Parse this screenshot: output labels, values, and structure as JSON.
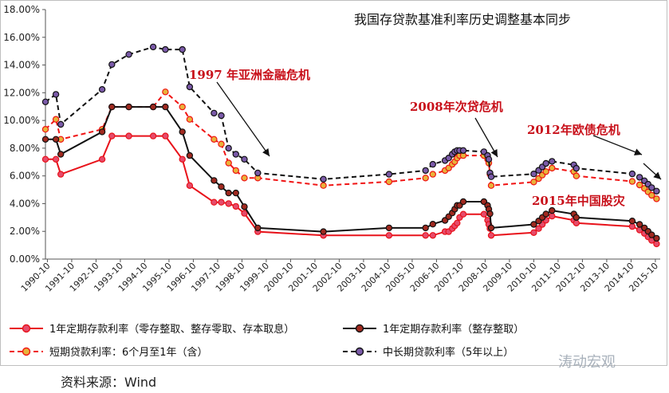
{
  "chart_data": {
    "type": "line",
    "title": "我国存贷款基准利率历史调整基本同步",
    "xlabel": "",
    "ylabel": "",
    "ylim": [
      0,
      18
    ],
    "yticks": [
      "0.00%",
      "2.00%",
      "4.00%",
      "6.00%",
      "8.00%",
      "10.00%",
      "12.00%",
      "14.00%",
      "16.00%",
      "18.00%"
    ],
    "xlim": [
      1990.67,
      2015.95
    ],
    "xticks": [
      "1990-10",
      "1991-10",
      "1992-10",
      "1993-10",
      "1994-10",
      "1995-10",
      "1996-10",
      "1997-10",
      "1998-10",
      "1999-10",
      "2000-10",
      "2001-10",
      "2002-10",
      "2003-10",
      "2004-10",
      "2005-10",
      "2006-10",
      "2007-10",
      "2008-10",
      "2009-10",
      "2010-10",
      "2011-10",
      "2012-10",
      "2013-10",
      "2014-10",
      "2015-10"
    ],
    "grid": false,
    "legend_position": "bottom",
    "annotations": [
      {
        "text": "1997 年亚洲金融危机",
        "x": 1999.6,
        "y": 7.4
      },
      {
        "text": "2008年次贷危机",
        "x": 2009.3,
        "y": 7.3
      },
      {
        "text": "2012年欧债危机",
        "x": 2015.9,
        "y": 5.5
      },
      {
        "text": "2015年中国股灾",
        "x": 2015.0,
        "y": 4.3
      }
    ],
    "series": [
      {
        "name": "1年定期存款利率（零存整取、整存零取、存本取息）",
        "color": "#e8121a",
        "marker_fill": "#e64b6a",
        "dash": "solid",
        "x": [
          1990.67,
          1991.1,
          1991.3,
          1993.0,
          1993.4,
          1994.1,
          1995.1,
          1995.6,
          1996.3,
          1996.6,
          1997.6,
          1997.9,
          1998.2,
          1998.5,
          1998.85,
          1999.4,
          2002.1,
          2004.8,
          2006.3,
          2006.6,
          2007.1,
          2007.25,
          2007.4,
          2007.5,
          2007.6,
          2007.7,
          2007.85,
          2008.7,
          2008.85,
          2008.9,
          2008.95,
          2009.0,
          2010.75,
          2010.95,
          2011.1,
          2011.25,
          2011.5,
          2012.4,
          2012.5,
          2014.8,
          2015.1,
          2015.3,
          2015.45,
          2015.6,
          2015.8
        ],
        "values": [
          7.2,
          7.2,
          6.12,
          7.2,
          8.88,
          8.88,
          8.88,
          8.88,
          7.2,
          5.3,
          4.1,
          4.1,
          4.0,
          3.8,
          3.3,
          1.98,
          1.71,
          1.71,
          1.71,
          1.71,
          1.98,
          1.98,
          2.2,
          2.4,
          2.6,
          3.0,
          3.24,
          3.24,
          2.8,
          2.5,
          2.2,
          1.71,
          1.91,
          2.2,
          2.5,
          2.8,
          3.1,
          2.8,
          2.6,
          2.35,
          2.1,
          1.85,
          1.6,
          1.35,
          1.1
        ]
      },
      {
        "name": "1年定期存款利率（整存整取）",
        "color": "#111111",
        "marker_fill": "#a0291f",
        "dash": "solid",
        "x": [
          1990.67,
          1991.1,
          1991.3,
          1993.0,
          1993.4,
          1994.1,
          1995.1,
          1995.6,
          1996.3,
          1996.6,
          1997.6,
          1997.9,
          1998.2,
          1998.5,
          1998.85,
          1999.4,
          2002.1,
          2004.8,
          2006.3,
          2006.6,
          2007.1,
          2007.25,
          2007.4,
          2007.5,
          2007.6,
          2007.7,
          2007.85,
          2008.7,
          2008.85,
          2008.9,
          2008.95,
          2009.0,
          2010.75,
          2010.95,
          2011.1,
          2011.25,
          2011.5,
          2012.4,
          2012.5,
          2014.8,
          2015.1,
          2015.3,
          2015.45,
          2015.6,
          2015.8
        ],
        "values": [
          8.64,
          8.64,
          7.56,
          9.18,
          10.98,
          10.98,
          10.98,
          10.98,
          9.18,
          7.47,
          5.67,
          5.22,
          4.77,
          4.77,
          3.78,
          2.25,
          1.98,
          2.25,
          2.25,
          2.52,
          2.79,
          3.06,
          3.33,
          3.6,
          3.87,
          3.87,
          4.14,
          4.14,
          3.87,
          3.6,
          3.27,
          2.25,
          2.5,
          2.75,
          3.0,
          3.25,
          3.5,
          3.25,
          3.0,
          2.75,
          2.5,
          2.25,
          2.0,
          1.75,
          1.5
        ]
      },
      {
        "name": "短期贷款利率：6个月至1年（含）",
        "color": "#f01414",
        "marker_fill": "#e8b23a",
        "dash": "dashed",
        "x": [
          1990.67,
          1991.1,
          1991.3,
          1993.0,
          1993.4,
          1994.1,
          1995.1,
          1995.6,
          1996.3,
          1996.6,
          1997.6,
          1997.9,
          1998.2,
          1998.5,
          1998.85,
          1999.4,
          2002.1,
          2004.8,
          2006.3,
          2006.6,
          2007.1,
          2007.25,
          2007.4,
          2007.5,
          2007.6,
          2007.7,
          2007.85,
          2008.7,
          2008.85,
          2008.9,
          2008.95,
          2009.0,
          2010.75,
          2010.95,
          2011.1,
          2011.25,
          2011.5,
          2012.4,
          2012.5,
          2014.8,
          2015.1,
          2015.3,
          2015.45,
          2015.6,
          2015.8
        ],
        "values": [
          9.36,
          10.08,
          8.64,
          9.36,
          10.98,
          10.98,
          10.98,
          12.06,
          10.98,
          10.08,
          8.64,
          8.3,
          6.93,
          6.39,
          5.85,
          5.85,
          5.31,
          5.58,
          5.85,
          6.12,
          6.39,
          6.57,
          6.84,
          7.02,
          7.29,
          7.47,
          7.47,
          7.47,
          7.2,
          6.93,
          6.12,
          5.31,
          5.56,
          5.81,
          6.06,
          6.31,
          6.56,
          6.31,
          6.0,
          5.6,
          5.35,
          5.1,
          4.85,
          4.6,
          4.35
        ]
      },
      {
        "name": "中长期贷款利率（5年以上）",
        "color": "#111111",
        "marker_fill": "#7a5aa8",
        "dash": "dashed",
        "x": [
          1990.67,
          1991.1,
          1991.3,
          1993.0,
          1993.4,
          1994.1,
          1995.1,
          1995.6,
          1996.3,
          1996.6,
          1997.6,
          1997.9,
          1998.2,
          1998.5,
          1998.85,
          1999.4,
          2002.1,
          2004.8,
          2006.3,
          2006.6,
          2007.1,
          2007.25,
          2007.4,
          2007.5,
          2007.6,
          2007.7,
          2007.85,
          2008.7,
          2008.85,
          2008.9,
          2008.95,
          2009.0,
          2010.75,
          2010.95,
          2011.1,
          2011.25,
          2011.5,
          2012.4,
          2012.5,
          2014.8,
          2015.1,
          2015.3,
          2015.45,
          2015.6,
          2015.8
        ],
        "values": [
          11.34,
          11.88,
          9.72,
          12.24,
          14.04,
          14.76,
          15.3,
          15.12,
          15.12,
          12.42,
          10.53,
          10.35,
          8.0,
          7.56,
          7.2,
          6.21,
          5.76,
          6.12,
          6.39,
          6.84,
          7.11,
          7.29,
          7.56,
          7.74,
          7.83,
          7.83,
          7.83,
          7.74,
          7.47,
          7.2,
          6.21,
          5.94,
          6.14,
          6.4,
          6.65,
          6.9,
          7.05,
          6.8,
          6.55,
          6.15,
          5.9,
          5.65,
          5.4,
          5.15,
          4.9
        ]
      }
    ]
  },
  "source_text": "资料来源：Wind",
  "watermark_text": "涛动宏观"
}
